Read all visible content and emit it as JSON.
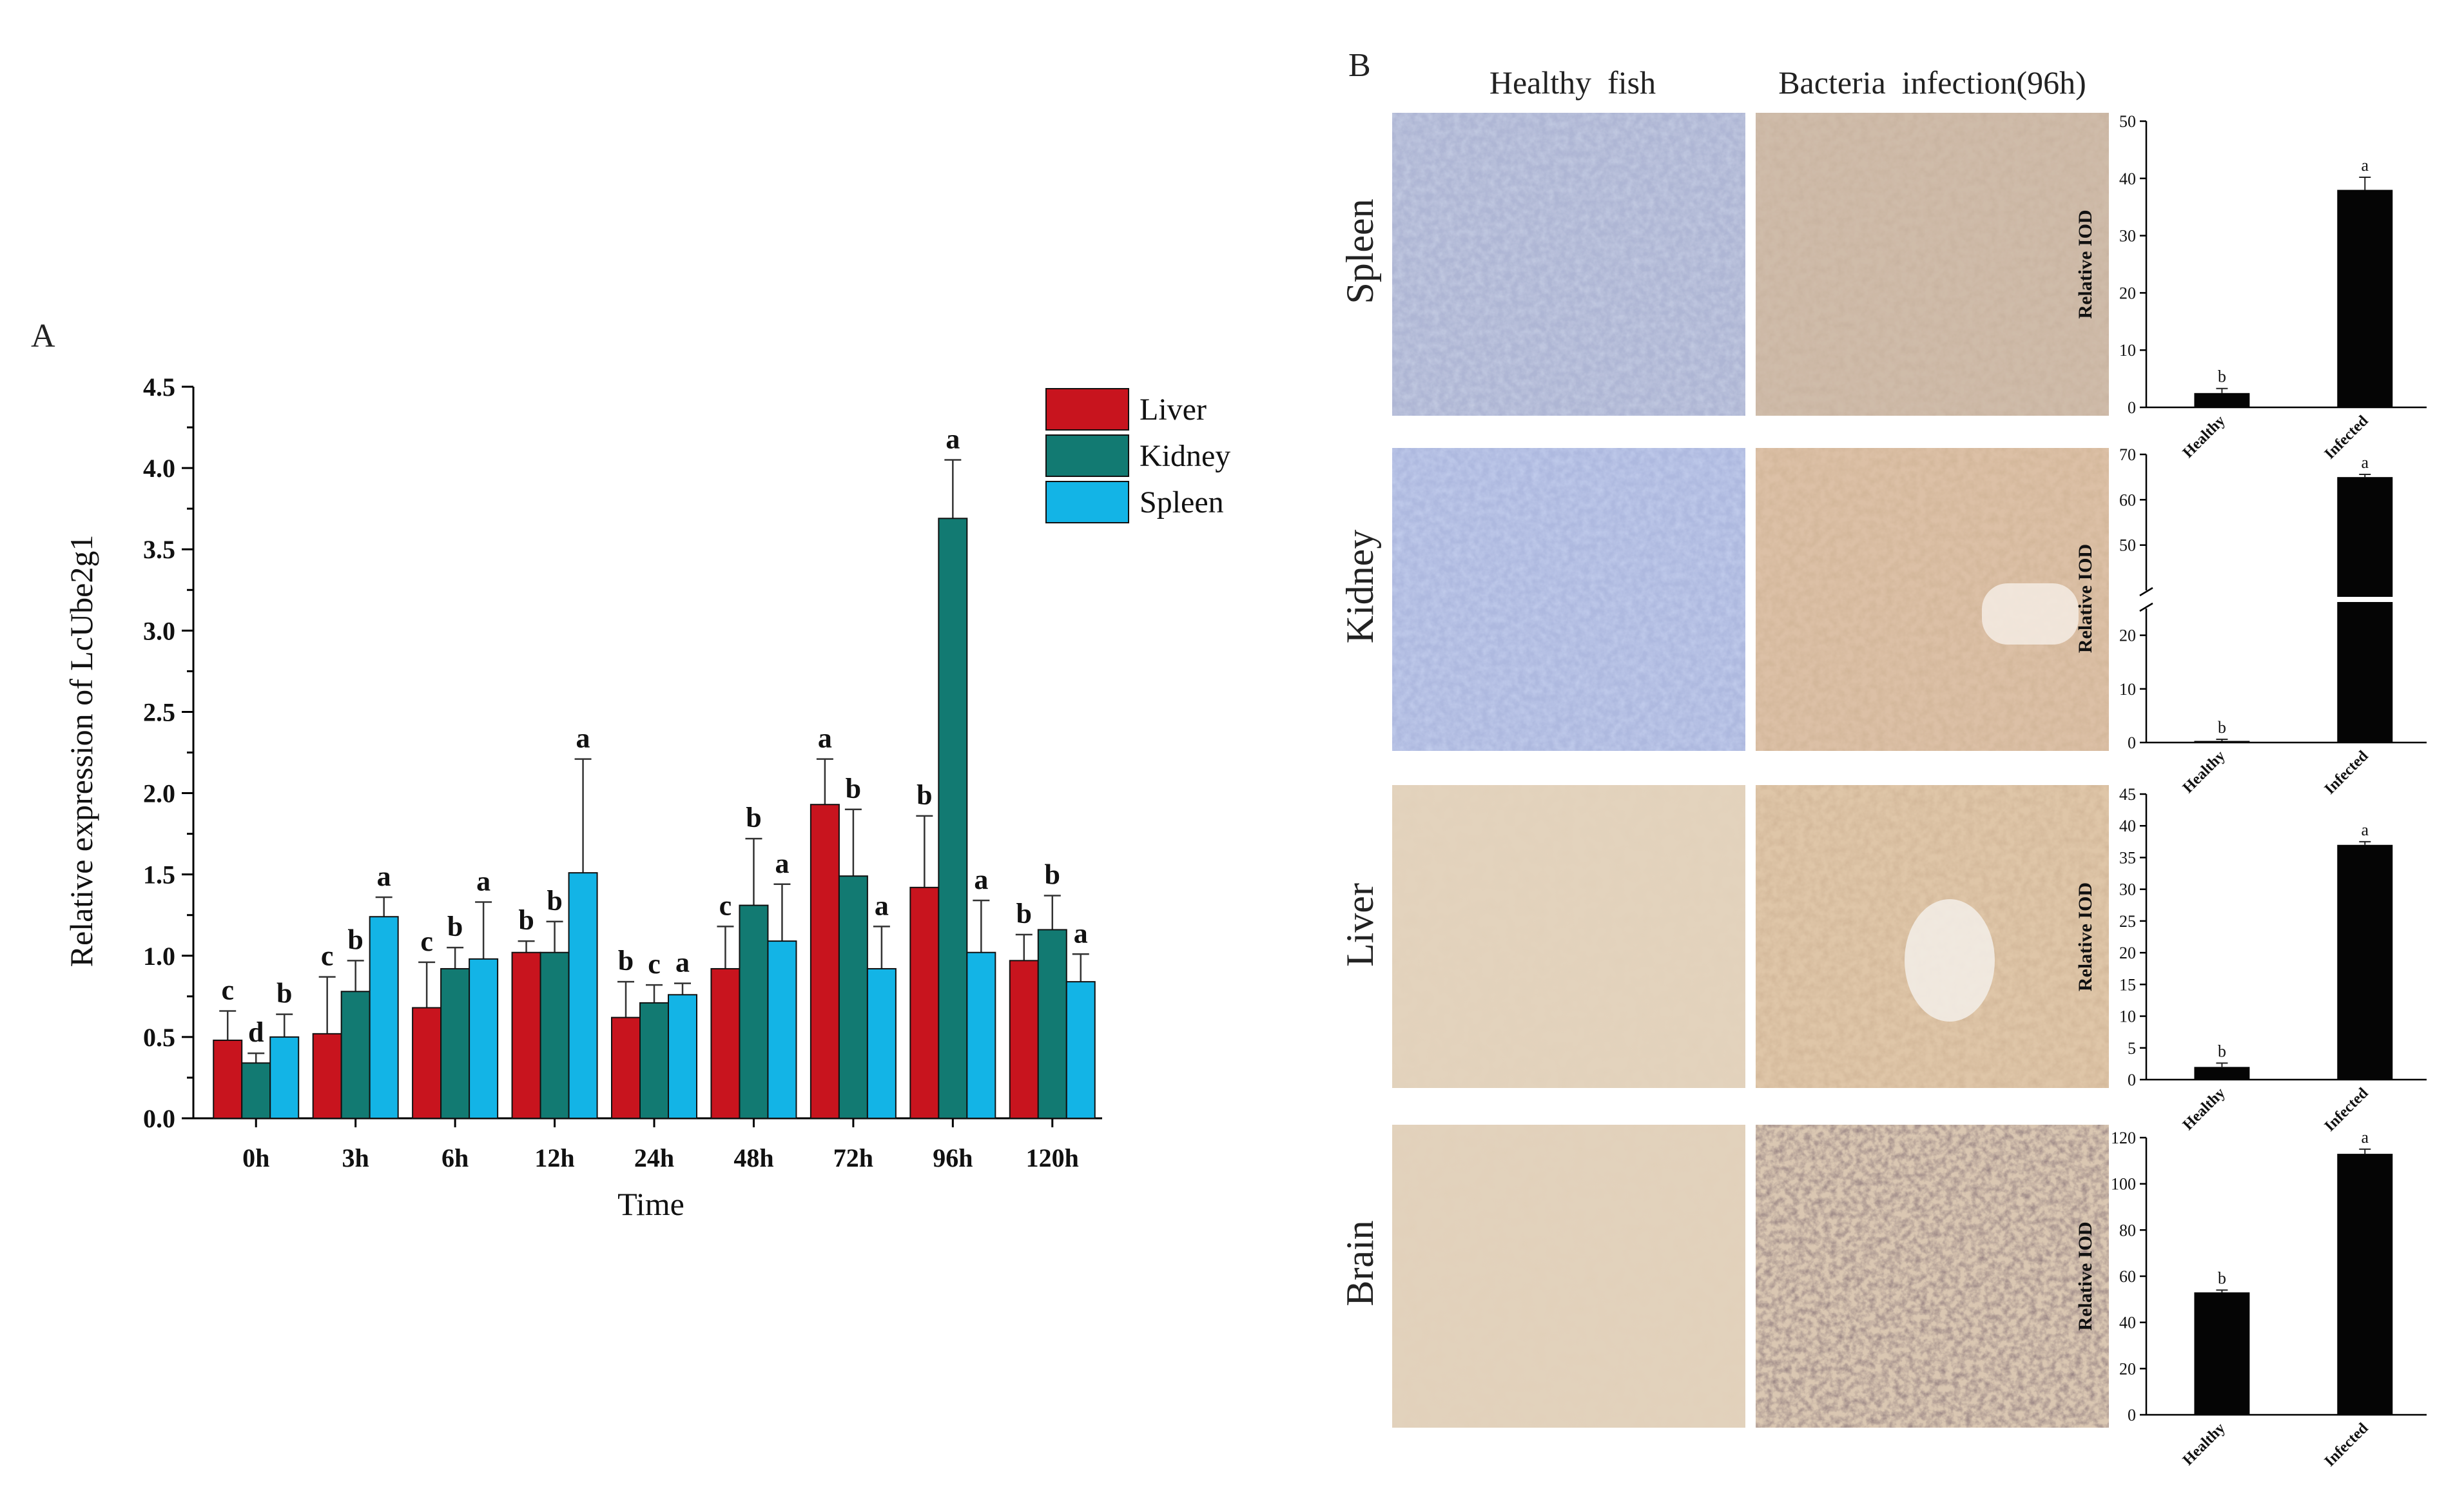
{
  "panel_labels": {
    "a": "A",
    "b": "B"
  },
  "colors": {
    "liver": "#c8141e",
    "kidney": "#127a72",
    "spleen": "#13b4e6",
    "bar_black": "#050505"
  },
  "chart_data": [
    {
      "id": "A",
      "type": "bar",
      "title": "",
      "xlabel": "Time",
      "ylabel": "Relative expression of LcUbe2g1",
      "ylim": [
        0,
        4.5
      ],
      "yticks": [
        "0.0",
        "0.5",
        "1.0",
        "1.5",
        "2.0",
        "2.5",
        "3.0",
        "3.5",
        "4.0",
        "4.5"
      ],
      "categories": [
        "0h",
        "3h",
        "6h",
        "12h",
        "24h",
        "48h",
        "72h",
        "96h",
        "120h"
      ],
      "legend_position": "top-right",
      "series": [
        {
          "name": "Liver",
          "values": [
            0.48,
            0.52,
            0.68,
            1.02,
            0.62,
            0.92,
            1.93,
            1.42,
            0.97
          ],
          "errors": [
            0.18,
            0.35,
            0.28,
            0.07,
            0.22,
            0.26,
            0.28,
            0.44,
            0.16
          ],
          "letters": [
            "c",
            "c",
            "c",
            "b",
            "b",
            "c",
            "a",
            "b",
            "b"
          ]
        },
        {
          "name": "Kidney",
          "values": [
            0.34,
            0.78,
            0.92,
            1.02,
            0.71,
            1.31,
            1.49,
            3.69,
            1.16
          ],
          "errors": [
            0.06,
            0.19,
            0.13,
            0.19,
            0.11,
            0.41,
            0.41,
            0.36,
            0.21
          ],
          "letters": [
            "d",
            "b",
            "b",
            "b",
            "c",
            "b",
            "b",
            "a",
            "b"
          ]
        },
        {
          "name": "Spleen",
          "values": [
            0.5,
            1.24,
            0.98,
            1.51,
            0.76,
            1.09,
            0.92,
            1.02,
            0.84
          ],
          "errors": [
            0.14,
            0.12,
            0.35,
            0.7,
            0.07,
            0.35,
            0.26,
            0.32,
            0.17
          ],
          "letters": [
            "b",
            "a",
            "a",
            "a",
            "a",
            "a",
            "a",
            "a",
            "a"
          ]
        }
      ]
    },
    {
      "id": "B-spleen",
      "type": "bar",
      "ylabel": "Relative IOD",
      "ylim": [
        0,
        50
      ],
      "yticks": [
        "0",
        "10",
        "20",
        "30",
        "40",
        "50"
      ],
      "categories": [
        "Healthy",
        "Infected"
      ],
      "values": [
        2.5,
        38
      ],
      "errors": [
        0.8,
        2.2
      ],
      "letters": [
        "b",
        "a"
      ]
    },
    {
      "id": "B-kidney",
      "type": "bar",
      "ylabel": "Relative IOD",
      "broken_axis": true,
      "ylim_lower": [
        0,
        25
      ],
      "ylim_upper": [
        40,
        70
      ],
      "yticks_lower": [
        "0",
        "10",
        "20"
      ],
      "yticks_upper": [
        "50",
        "60",
        "70"
      ],
      "categories": [
        "Healthy",
        "Infected"
      ],
      "values": [
        0.3,
        65
      ],
      "errors": [
        0.3,
        0.6
      ],
      "letters": [
        "b",
        "a"
      ]
    },
    {
      "id": "B-liver",
      "type": "bar",
      "ylabel": "Relative IOD",
      "ylim": [
        0,
        45
      ],
      "yticks": [
        "0",
        "5",
        "10",
        "15",
        "20",
        "25",
        "30",
        "35",
        "40",
        "45"
      ],
      "categories": [
        "Healthy",
        "Infected"
      ],
      "values": [
        2,
        37
      ],
      "errors": [
        0.6,
        0.5
      ],
      "letters": [
        "b",
        "a"
      ]
    },
    {
      "id": "B-brain",
      "type": "bar",
      "ylabel": "Relative IOD",
      "ylim": [
        0,
        120
      ],
      "yticks": [
        "0",
        "20",
        "40",
        "60",
        "80",
        "100",
        "120"
      ],
      "categories": [
        "Healthy",
        "Infected"
      ],
      "values": [
        53,
        113
      ],
      "errors": [
        1,
        2
      ],
      "letters": [
        "b",
        "a"
      ]
    }
  ],
  "micrographs": {
    "column_titles": [
      "Healthy  fish",
      "Bacteria  infection(96h)"
    ],
    "row_labels": [
      "Spleen",
      "Kidney",
      "Liver",
      "Brain"
    ]
  }
}
